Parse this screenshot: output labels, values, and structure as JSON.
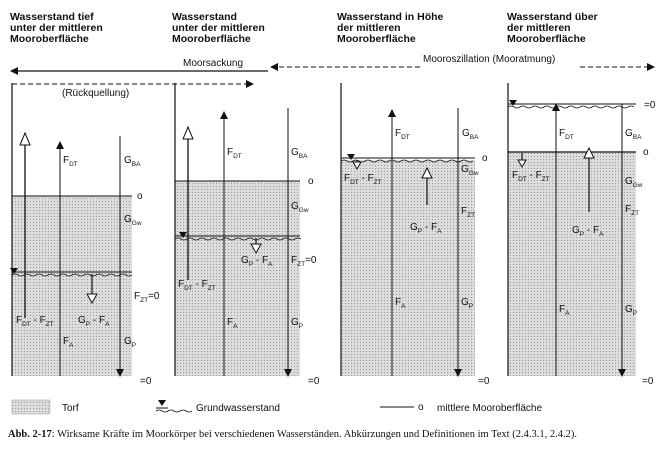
{
  "titles": [
    [
      "Wasserstand tief",
      "unter der mittleren",
      "Mooroberfläche"
    ],
    [
      "Wasserstand",
      "unter der mittleren",
      "Mooroberfläche"
    ],
    [
      "Wasserstand in Höhe",
      "der mittleren",
      "Mooroberfläche"
    ],
    [
      "Wasserstand über",
      "der mittleren",
      "Mooroberfläche"
    ]
  ],
  "arrows": {
    "moorsackung": "Moorsackung",
    "rueckquellung": "(Rückquellung)",
    "mooroszillation": "Mooroszillation (Mooratmung)"
  },
  "symbols": {
    "F": "F",
    "G": "G",
    "DT": "DT",
    "ZT": "ZT",
    "BA": "BA",
    "Gw": "Gw",
    "P": "P",
    "A": "A",
    "U": "U",
    "W": "W",
    "o": "o",
    "zero": "=0",
    "minus": " - "
  },
  "legend": {
    "torf": "Torf",
    "grundwasserstand": "Grundwasserstand",
    "mooroberflaeche": "mittlere Mooroberfläche"
  },
  "caption": {
    "label": "Abb. 2-17",
    "text": ": Wirksame Kräfte im Moorkörper bei verschiedenen Wasserständen. Abkürzungen und Definitionen im Text (2.4.3.1, 2.4.2)."
  },
  "colors": {
    "peat": "#d8d8d8",
    "ink": "#111111"
  }
}
